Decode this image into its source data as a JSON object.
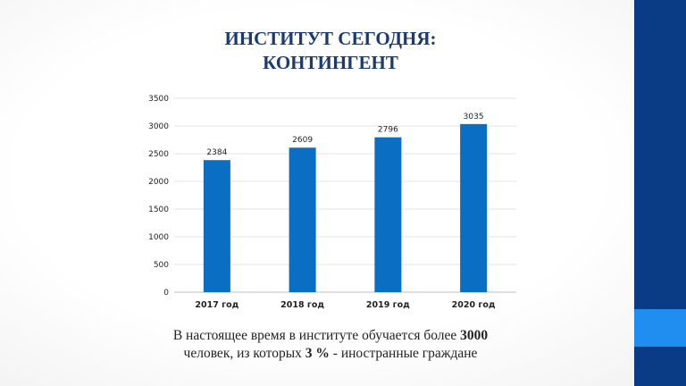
{
  "title": {
    "line1": "ИНСТИТУТ СЕГОДНЯ:",
    "line2": "КОНТИНГЕНТ"
  },
  "caption": {
    "line1_pre": "В настоящее время в институте обучается более ",
    "line1_bold": "3000",
    "line2_pre": "человек, из которых ",
    "line2_bold": "3 %",
    "line2_post": " - иностранные граждане"
  },
  "colors": {
    "bar": "#0a6fc2",
    "side_band": "#0a3c86",
    "side_accent": "#1f8ef0",
    "title": "#1a3a70"
  },
  "chart_data": {
    "type": "bar",
    "categories": [
      "2017 год",
      "2018 год",
      "2019 год",
      "2020 год"
    ],
    "values": [
      2384,
      2609,
      2796,
      3035
    ],
    "ylim": [
      0,
      3500
    ],
    "yticks": [
      0,
      500,
      1000,
      1500,
      2000,
      2500,
      3000,
      3500
    ],
    "grid": true,
    "legend": "none",
    "data_labels": true
  }
}
